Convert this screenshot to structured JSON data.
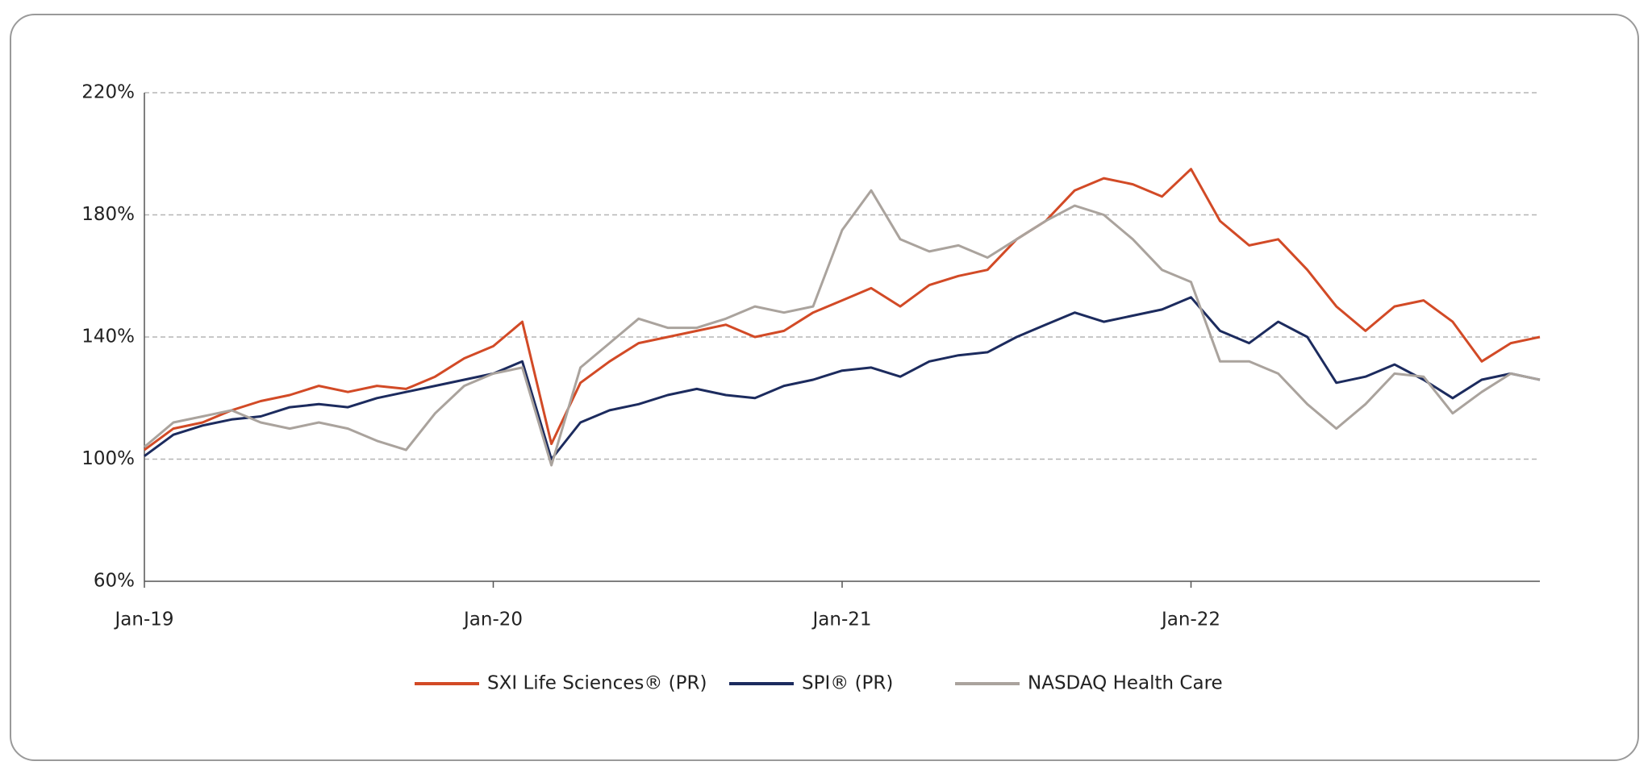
{
  "chart_data": {
    "type": "line",
    "categories": [
      "Jan-19",
      null,
      null,
      null,
      null,
      null,
      null,
      null,
      null,
      null,
      null,
      null,
      "Jan-20",
      null,
      null,
      null,
      null,
      null,
      null,
      null,
      null,
      null,
      null,
      null,
      "Jan-21",
      null,
      null,
      null,
      null,
      null,
      null,
      null,
      null,
      null,
      null,
      null,
      "Jan-22",
      null,
      null,
      null,
      null,
      null,
      null,
      null,
      null,
      null,
      null,
      null,
      null
    ],
    "series": [
      {
        "name": "SXI Life Sciences® (PR)",
        "color": "#d24a26",
        "values": [
          103,
          110,
          112,
          116,
          119,
          121,
          124,
          122,
          124,
          123,
          127,
          133,
          137,
          145,
          105,
          125,
          132,
          138,
          140,
          142,
          144,
          140,
          142,
          148,
          152,
          156,
          150,
          157,
          160,
          162,
          172,
          178,
          188,
          192,
          190,
          186,
          195,
          178,
          170,
          172,
          162,
          150,
          142,
          150,
          152,
          145,
          132,
          138,
          140
        ]
      },
      {
        "name": "SPI® (PR)",
        "color": "#1c2b5e",
        "values": [
          101,
          108,
          111,
          113,
          114,
          117,
          118,
          117,
          120,
          122,
          124,
          126,
          128,
          132,
          100,
          112,
          116,
          118,
          121,
          123,
          121,
          120,
          124,
          126,
          129,
          130,
          127,
          132,
          134,
          135,
          140,
          144,
          148,
          145,
          147,
          149,
          153,
          142,
          138,
          145,
          140,
          125,
          127,
          131,
          126,
          120,
          126,
          128,
          126
        ]
      },
      {
        "name": "NASDAQ Health Care",
        "color": "#aaa39d",
        "values": [
          104,
          112,
          114,
          116,
          112,
          110,
          112,
          110,
          106,
          103,
          115,
          124,
          128,
          130,
          98,
          130,
          138,
          146,
          143,
          143,
          146,
          150,
          148,
          150,
          175,
          188,
          172,
          168,
          170,
          166,
          172,
          178,
          183,
          180,
          172,
          162,
          158,
          132,
          132,
          128,
          118,
          110,
          118,
          128,
          127,
          115,
          122,
          128,
          126
        ]
      }
    ],
    "ylim": [
      60,
      220
    ],
    "yticks": [
      {
        "value": 60,
        "label": "60%"
      },
      {
        "value": 100,
        "label": "100%"
      },
      {
        "value": 140,
        "label": "140%"
      },
      {
        "value": 180,
        "label": "180%"
      },
      {
        "value": 220,
        "label": "220%"
      }
    ],
    "grid": true,
    "legend": "bottom"
  }
}
